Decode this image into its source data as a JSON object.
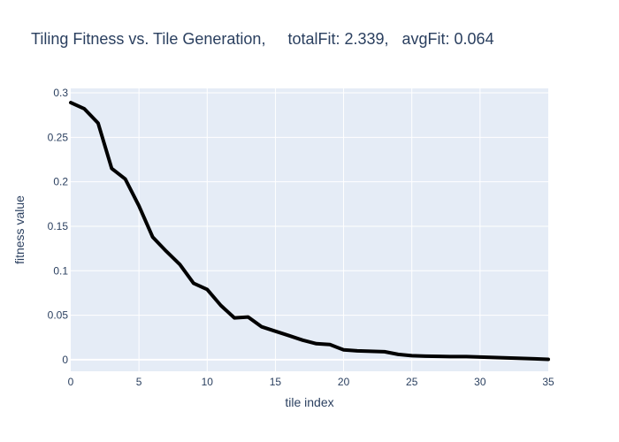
{
  "chart_data": {
    "type": "line",
    "title": "Tiling Fitness vs. Tile Generation,     totalFit: 2.339,   avgFit: 0.064",
    "xlabel": "tile index",
    "ylabel": "fitness value",
    "xlim": [
      0,
      35
    ],
    "ylim": [
      -0.013,
      0.305
    ],
    "x_ticks": [
      0,
      5,
      10,
      15,
      20,
      25,
      30,
      35
    ],
    "x_tick_labels": [
      "0",
      "5",
      "10",
      "15",
      "20",
      "25",
      "30",
      "35"
    ],
    "y_ticks": [
      0,
      0.05,
      0.1,
      0.15,
      0.2,
      0.25,
      0.3
    ],
    "y_tick_labels": [
      "0",
      "0.05",
      "0.1",
      "0.15",
      "0.2",
      "0.25",
      "0.3"
    ],
    "grid": true,
    "plot_background": "#e5ecf6",
    "grid_color": "#ffffff",
    "line_color": "#000000",
    "series": [
      {
        "x": [
          0,
          1,
          2,
          3,
          4,
          5,
          6,
          7,
          8,
          9,
          10,
          11,
          12,
          13,
          14,
          15,
          16,
          17,
          18,
          19,
          20,
          21,
          22,
          23,
          24,
          25,
          26,
          27,
          28,
          29,
          30,
          31,
          32,
          33,
          34,
          35
        ],
        "y": [
          0.289,
          0.282,
          0.266,
          0.215,
          0.203,
          0.173,
          0.138,
          0.122,
          0.107,
          0.086,
          0.079,
          0.061,
          0.047,
          0.048,
          0.037,
          0.032,
          0.027,
          0.022,
          0.018,
          0.017,
          0.011,
          0.01,
          0.0095,
          0.009,
          0.006,
          0.0045,
          0.004,
          0.0038,
          0.0035,
          0.0035,
          0.003,
          0.0025,
          0.002,
          0.0015,
          0.001,
          0.0004
        ]
      }
    ]
  }
}
